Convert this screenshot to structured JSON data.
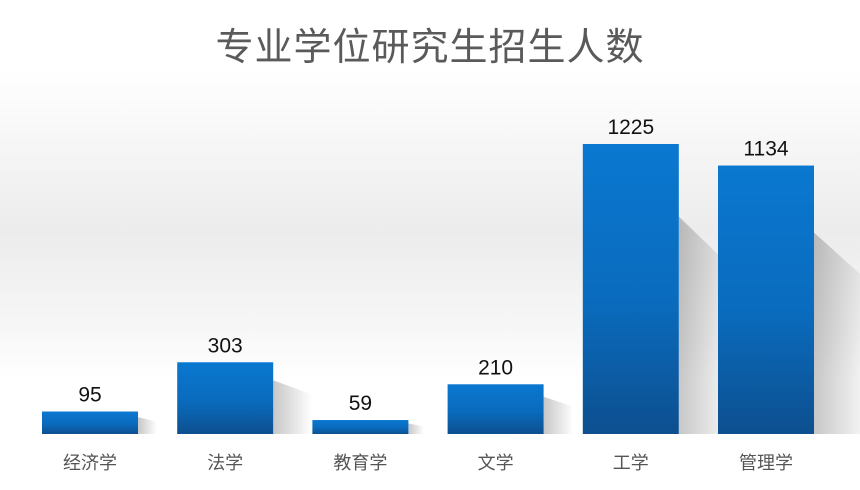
{
  "chart_data": {
    "type": "bar",
    "title": "专业学位研究生招生人数",
    "categories": [
      "经济学",
      "法学",
      "教育学",
      "文学",
      "工学",
      "管理学"
    ],
    "values": [
      95,
      303,
      59,
      210,
      1225,
      1134
    ],
    "ylim": [
      0,
      1225
    ],
    "grid": false,
    "legend": "none",
    "colors": {
      "bar_top": "#0a78d0",
      "bar_bottom": "#0d4f8f",
      "label": "#111111",
      "category": "#555555"
    }
  }
}
